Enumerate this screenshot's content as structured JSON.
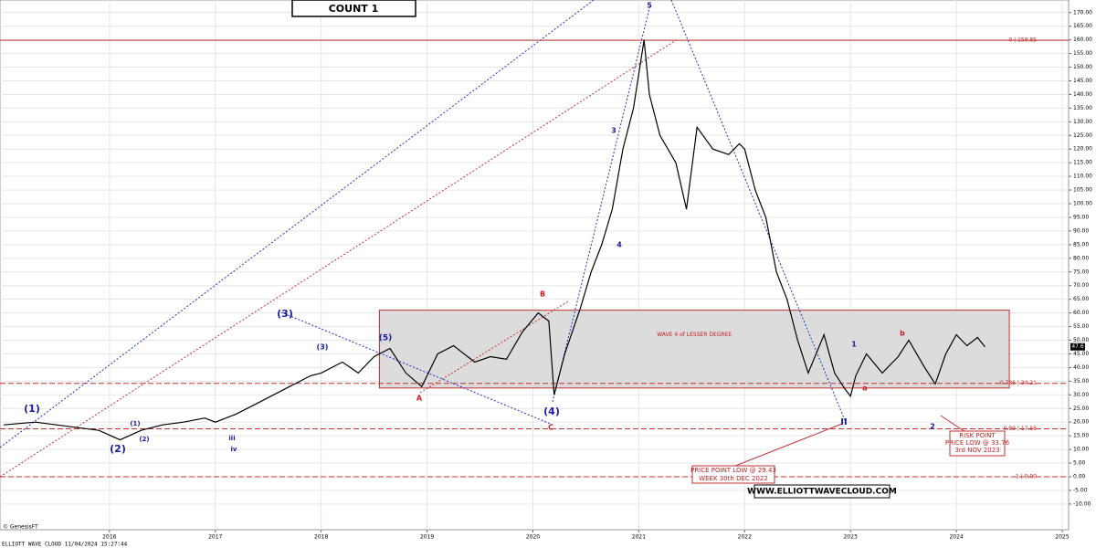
{
  "chart_data": {
    "type": "line",
    "title": "COUNT 1",
    "series": [
      {
        "name": "Price",
        "color": "#000000",
        "x": [
          2015.0,
          2015.3,
          2015.6,
          2015.9,
          2016.1,
          2016.3,
          2016.5,
          2016.7,
          2016.9,
          2017.0,
          2017.2,
          2017.4,
          2017.5,
          2017.7,
          2017.9,
          2018.0,
          2018.2,
          2018.35,
          2018.5,
          2018.65,
          2018.8,
          2018.95,
          2019.1,
          2019.25,
          2019.45,
          2019.6,
          2019.75,
          2019.9,
          2020.05,
          2020.15,
          2020.2,
          2020.3,
          2020.45,
          2020.55,
          2020.65,
          2020.75,
          2020.85,
          2020.95,
          2021.05,
          2021.1,
          2021.2,
          2021.35,
          2021.45,
          2021.55,
          2021.7,
          2021.85,
          2021.95,
          2022.0,
          2022.1,
          2022.2,
          2022.3,
          2022.4,
          2022.5,
          2022.6,
          2022.75,
          2022.85,
          2022.95,
          2023.0,
          2023.05,
          2023.15,
          2023.3,
          2023.45,
          2023.55,
          2023.7,
          2023.8,
          2023.9,
          2024.0,
          2024.1,
          2024.2,
          2024.27
        ],
        "values": [
          19,
          20,
          18.5,
          17,
          13.5,
          17,
          19,
          20,
          21.5,
          20,
          23,
          27,
          29,
          33,
          37,
          38,
          42,
          38,
          44,
          47,
          38,
          33,
          45,
          48,
          42,
          44,
          43,
          53,
          60,
          57,
          30,
          45,
          62,
          75,
          85,
          98,
          120,
          135,
          160,
          140,
          125,
          115,
          98,
          128,
          120,
          118,
          122,
          120,
          105,
          95,
          75,
          65,
          50,
          38,
          52,
          38,
          32,
          29.5,
          37,
          45,
          38,
          44,
          50,
          40,
          34,
          45,
          52,
          48,
          51,
          47.6
        ]
      }
    ],
    "last_price": {
      "value": 47.6,
      "label": "47.6"
    },
    "xlim": [
      2014.966,
      2025.06
    ],
    "ylim": [
      -19.4,
      174.6
    ],
    "xticks": [
      2016,
      2017,
      2018,
      2019,
      2020,
      2021,
      2022,
      2023,
      2024,
      2025
    ],
    "yticks": [
      {
        "value": -10,
        "label": "-10.00"
      },
      {
        "value": -5,
        "label": "-5.00"
      },
      {
        "value": 0,
        "label": "0.00"
      },
      {
        "value": 5,
        "label": "5.00"
      },
      {
        "value": 10,
        "label": "10.00"
      },
      {
        "value": 15,
        "label": "15.00"
      },
      {
        "value": 20,
        "label": "20.00"
      },
      {
        "value": 25,
        "label": "25.00"
      },
      {
        "value": 30,
        "label": "30.00"
      },
      {
        "value": 35,
        "label": "35.00"
      },
      {
        "value": 40,
        "label": "40.00"
      },
      {
        "value": 45,
        "label": "45.00"
      },
      {
        "value": 50,
        "label": "50.00"
      },
      {
        "value": 55,
        "label": "55.00"
      },
      {
        "value": 60,
        "label": "60.00"
      },
      {
        "value": 65,
        "label": "65.00"
      },
      {
        "value": 70,
        "label": "70.00"
      },
      {
        "value": 75,
        "label": "75.00"
      },
      {
        "value": 80,
        "label": "80.00"
      },
      {
        "value": 85,
        "label": "85.00"
      },
      {
        "value": 90,
        "label": "90.00"
      },
      {
        "value": 95,
        "label": "95.00"
      },
      {
        "value": 100,
        "label": "100.00"
      },
      {
        "value": 105,
        "label": "105.00"
      },
      {
        "value": 110,
        "label": "110.00"
      },
      {
        "value": 115,
        "label": "115.00"
      },
      {
        "value": 120,
        "label": "120.00"
      },
      {
        "value": 125,
        "label": "125.00"
      },
      {
        "value": 130,
        "label": "130.00"
      },
      {
        "value": 135,
        "label": "135.00"
      },
      {
        "value": 140,
        "label": "140.00"
      },
      {
        "value": 145,
        "label": "145.00"
      },
      {
        "value": 150,
        "label": "150.00"
      },
      {
        "value": 155,
        "label": "155.00"
      },
      {
        "value": 160,
        "label": "160.00"
      },
      {
        "value": 165,
        "label": "165.00"
      },
      {
        "value": 170,
        "label": "170.00"
      }
    ],
    "grid": true,
    "levels": [
      {
        "value": 159.85,
        "label": "0 | 159.85"
      },
      {
        "value": 34.21,
        "label": "0.786 | 34.21"
      },
      {
        "value": 17.58,
        "label": "0.89 | 17.58"
      },
      {
        "value": 0,
        "label": "1 | 0.00"
      }
    ],
    "box": {
      "x": [
        2018.55,
        2024.5
      ],
      "y": [
        32.5,
        61
      ],
      "label": "WAVE 4 of LESSER DEGREE"
    },
    "annotations": [
      "(1)",
      "(2)",
      "(3)",
      "(4)",
      "(5)",
      "5",
      "3",
      "4",
      "B",
      "C",
      "A",
      "II",
      "1",
      "2",
      "a",
      "b",
      "(3)",
      "(1)",
      "(2)",
      "iii",
      "iv"
    ],
    "callout_low": [
      "PRICE POINT LOW @ 29.43",
      "WEEK 30th DEC 2022"
    ],
    "callout_risk": [
      "RISK POINT",
      "PRICE LOW @ 33.76",
      "3rd NOV 2023"
    ],
    "website": "WWW.ELLIOTTWAVECLOUD.COM",
    "source": "© GenesisFT",
    "footer": "ELLIOTT WAVE CLOUD   11/04/2024 15:27:44"
  }
}
